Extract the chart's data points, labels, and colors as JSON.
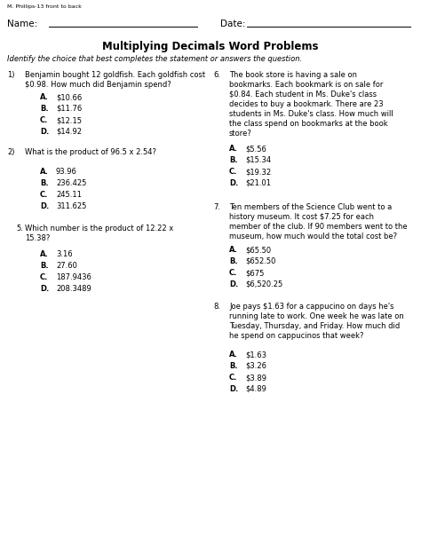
{
  "header_small": "M. Phillips-13 front to back",
  "name_label": "Name:",
  "date_label": "Date:",
  "title": "Multiplying Decimals Word Problems",
  "instructions": "Identify the choice that best completes the statement or answers the question.",
  "q1_num": "1)",
  "q1_text1": "Benjamin bought 12 goldfish. Each goldfish cost",
  "q1_text2": "$0.98. How much did Benjamin spend?",
  "q1_choices": [
    [
      "A.",
      "$10.66"
    ],
    [
      "B.",
      "$11.76"
    ],
    [
      "C.",
      "$12.15"
    ],
    [
      "D.",
      "$14.92"
    ]
  ],
  "q2_num": "2)",
  "q2_text": "What is the product of 96.5 x 2.54?",
  "q2_choices": [
    [
      "A.",
      "93.96"
    ],
    [
      "B.",
      "236.425"
    ],
    [
      "C.",
      "245.11"
    ],
    [
      "D.",
      "311.625"
    ]
  ],
  "q5_num": "5.",
  "q5_text1": "Which number is the product of 12.22 x",
  "q5_text2": "15.38?",
  "q5_choices": [
    [
      "A.",
      "3.16"
    ],
    [
      "B.",
      "27.60"
    ],
    [
      "C.",
      "187.9436"
    ],
    [
      "D.",
      "208.3489"
    ]
  ],
  "q6_num": "6.",
  "q6_lines": [
    "The book store is having a sale on",
    "bookmarks. Each bookmark is on sale for",
    "$0.84. Each student in Ms. Duke's class",
    "decides to buy a bookmark. There are 23",
    "students in Ms. Duke's class. How much will",
    "the class spend on bookmarks at the book",
    "store?"
  ],
  "q6_choices": [
    [
      "A.",
      "$5.56"
    ],
    [
      "B.",
      "$15.34"
    ],
    [
      "C.",
      "$19.32"
    ],
    [
      "D.",
      "$21.01"
    ]
  ],
  "q7_num": "7.",
  "q7_lines": [
    "Ten members of the Science Club went to a",
    "history museum. It cost $7.25 for each",
    "member of the club. If 90 members went to the",
    "museum, how much would the total cost be?"
  ],
  "q7_choices": [
    [
      "A.",
      "$65.50"
    ],
    [
      "B.",
      "$652.50"
    ],
    [
      "C.",
      "$675"
    ],
    [
      "D.",
      "$6,520.25"
    ]
  ],
  "q8_num": "8.",
  "q8_lines": [
    "Joe pays $1.63 for a cappucino on days he's",
    "running late to work. One week he was late on",
    "Tuesday, Thursday, and Friday. How much did",
    "he spend on cappucinos that week?"
  ],
  "q8_choices": [
    [
      "A.",
      "$1.63"
    ],
    [
      "B.",
      "$3.26"
    ],
    [
      "C.",
      "$3.89"
    ],
    [
      "D.",
      "$4.89"
    ]
  ],
  "bg_color": "#ffffff",
  "text_color": "#000000",
  "fs_header": 4.5,
  "fs_name": 7.5,
  "fs_title": 8.5,
  "fs_inst": 6.0,
  "fs_body": 6.0,
  "fs_choice": 6.0
}
